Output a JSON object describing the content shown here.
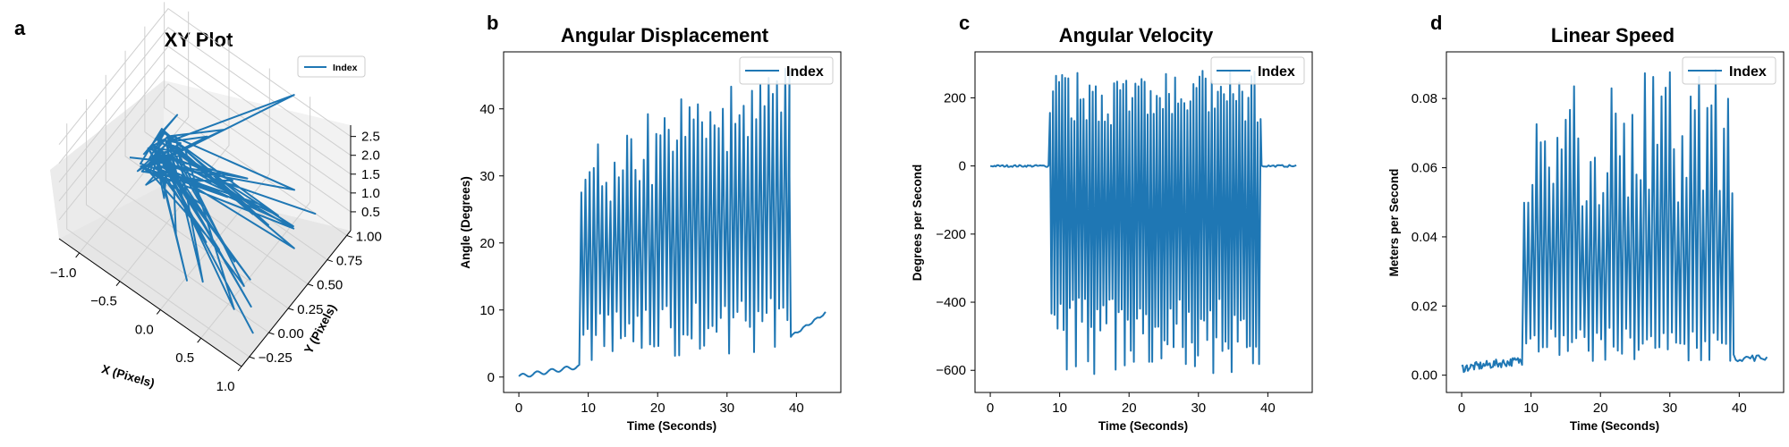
{
  "figure": {
    "series_color": "#1f77b4",
    "panels": [
      {
        "letter": "a"
      },
      {
        "letter": "b"
      },
      {
        "letter": "c"
      },
      {
        "letter": "d"
      }
    ]
  },
  "chart_data": [
    {
      "type": "line",
      "projection": "3d",
      "title": "XY Plot",
      "xlabel": "X (Pixels)",
      "ylabel": "Y (Pixels)",
      "zlabel": "",
      "x_ticks": [
        "−1.0",
        "−0.5",
        "0.0",
        "0.5",
        "1.0"
      ],
      "y_ticks": [
        "−0.25",
        "0.00",
        "0.25",
        "0.50",
        "0.75",
        "1.00"
      ],
      "z_ticks": [
        "0.5",
        "1.0",
        "1.5",
        "2.0",
        "2.5"
      ],
      "xlim": [
        -1.25,
        1.0
      ],
      "ylim": [
        -0.35,
        1.05
      ],
      "zlim": [
        0.0,
        2.8
      ],
      "legend": [
        "Index"
      ],
      "legend_position": "top-right",
      "grid": true
    },
    {
      "type": "line",
      "title": "Angular Displacement",
      "xlabel": "Time (Seconds)",
      "ylabel": "Angle (Degrees)",
      "x_ticks": [
        "0",
        "10",
        "20",
        "30",
        "40"
      ],
      "y_ticks": [
        "0",
        "10",
        "20",
        "30",
        "40"
      ],
      "xlim": [
        -2.2,
        46.4
      ],
      "ylim": [
        -2.3,
        48.5
      ],
      "legend": [
        "Index"
      ],
      "legend_position": "top-right",
      "grid": false
    },
    {
      "type": "line",
      "title": "Angular Velocity",
      "xlabel": "Time (Seconds)",
      "ylabel": "Degrees per Second",
      "x_ticks": [
        "0",
        "10",
        "20",
        "30",
        "40"
      ],
      "y_ticks": [
        "−600",
        "−400",
        "−200",
        "0",
        "200"
      ],
      "xlim": [
        -2.2,
        46.4
      ],
      "ylim": [
        -665,
        335
      ],
      "legend": [
        "Index"
      ],
      "legend_position": "top-right",
      "grid": false
    },
    {
      "type": "line",
      "title": "Linear Speed",
      "xlabel": "Time (Seconds)",
      "ylabel": "Meters per Second",
      "x_ticks": [
        "0",
        "10",
        "20",
        "30",
        "40"
      ],
      "y_ticks": [
        "0.00",
        "0.02",
        "0.04",
        "0.06",
        "0.08"
      ],
      "xlim": [
        -2.2,
        46.4
      ],
      "ylim": [
        -0.005,
        0.0935
      ],
      "legend": [
        "Index"
      ],
      "legend_position": "top-right",
      "grid": false
    }
  ]
}
